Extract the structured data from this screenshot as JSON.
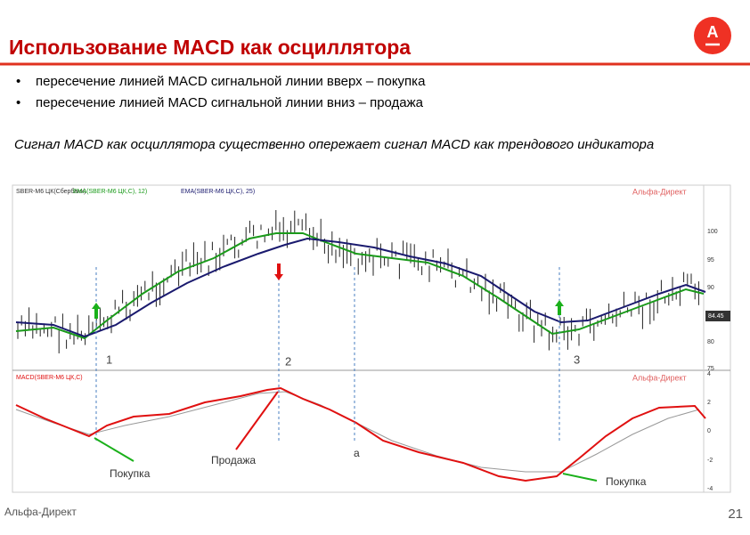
{
  "header": {
    "title": "Использование MACD как осциллятора"
  },
  "bullets": [
    "пересечение линией MACD сигнальной линии вверх – покупка",
    "пересечение линией MACD сигнальной линии вниз – продажа"
  ],
  "paragraph": "Сигнал MACD как осциллятора существенно опережает сигнал MACD как трендового индикатора",
  "chart_image": {
    "price_panel": {
      "legend": [
        "SBER-M6 ЦК(Сбербанк)",
        "EMA(SBER-M6 ЦК,C), 12)",
        "EMA(SBER-M6 ЦК,C), 25)"
      ],
      "watermark": "Альфа-Директ",
      "axis_labels": [
        "100",
        "95",
        "90",
        "85",
        "80",
        "75"
      ],
      "price_tag": "84.45",
      "markers": [
        "1",
        "2",
        "3"
      ]
    },
    "macd_panel": {
      "legend": "MACD(SBER-M6 ЦК,C)",
      "watermark": "Альфа-Директ",
      "axis_labels": [
        "4",
        "2",
        "0",
        "-2",
        "-4"
      ],
      "annotations": [
        "Покупка",
        "Продажа",
        "а",
        "Покупка"
      ]
    }
  },
  "footer": {
    "brand": "Альфа-Директ",
    "page": "21"
  }
}
